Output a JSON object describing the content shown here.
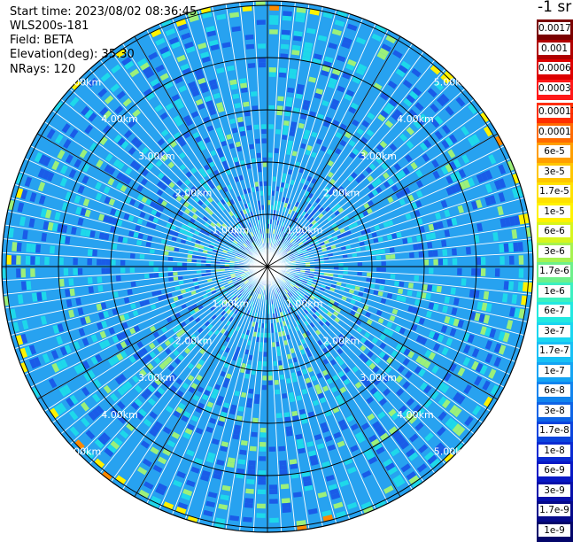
{
  "meta": {
    "start_time": "Start time: 2023/08/02 08:36:45",
    "instrument": "WLS200s-181",
    "field": "Field: BETA",
    "elevation": "Elevation(deg): 35.30",
    "nrays": "NRays: 120"
  },
  "colorbar": {
    "title": "-1 sr",
    "groups": [
      {
        "labels": [
          "0.0017",
          "0.001",
          "0.0006",
          "0.0003"
        ],
        "colors": [
          "#7a0000",
          "#b00000",
          "#dd0000",
          "#ff1818"
        ]
      },
      {
        "labels": [
          "0.00017",
          "0.0001",
          "6e-5",
          "3e-5",
          "1.7e-5",
          "1e-5",
          "6e-6",
          "3e-6",
          "1.7e-6",
          "1e-6",
          "6e-7",
          "3e-7",
          "1.7e-7",
          "1e-7",
          "6e-8",
          "3e-8",
          "1.7e-8",
          "1e-8",
          "6e-9",
          "3e-9",
          "1.7e-9",
          "1e-9"
        ],
        "colors": [
          "#ff2e00",
          "#ff6a00",
          "#ff9e00",
          "#ffc600",
          "#ffe100",
          "#fff200",
          "#d7f51e",
          "#a6f250",
          "#6df08a",
          "#3cf0c0",
          "#22e8e0",
          "#1ad6f0",
          "#17c0f5",
          "#14a4f3",
          "#1184ee",
          "#0e64e6",
          "#0b44dd",
          "#0a2ad2",
          "#0818c4",
          "#0710aa",
          "#060a8a",
          "#04066a"
        ]
      }
    ]
  },
  "map": {
    "range_rings": [
      "1.00km",
      "2.00km",
      "3.00km",
      "4.00km",
      "5.00km"
    ],
    "palette": {
      "low": "#1a5ce8",
      "base": "#27a2f0",
      "mid": "#1ed8ea",
      "high": "#9cf07a",
      "hot": "#fff200",
      "peak": "#ff8a00"
    }
  }
}
